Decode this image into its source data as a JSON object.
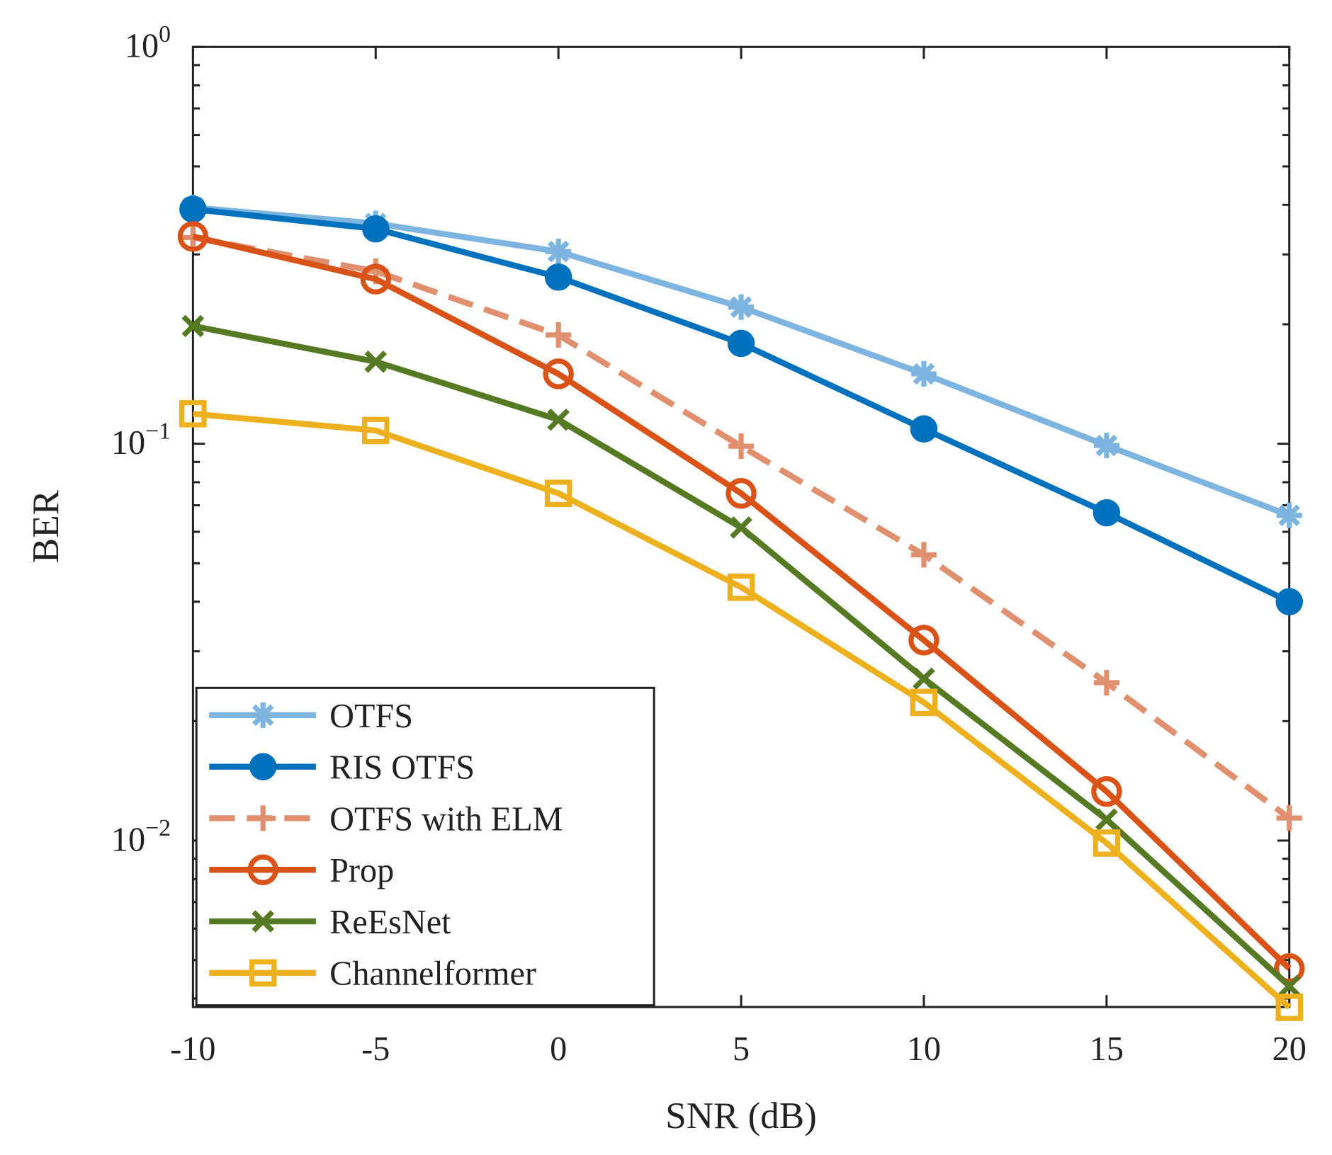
{
  "chart_data": {
    "type": "line",
    "title": "",
    "xlabel": "SNR (dB)",
    "ylabel": "BER",
    "xscale": "linear",
    "yscale": "log",
    "xlim": [
      -10,
      20
    ],
    "ylim": [
      0.0038,
      1
    ],
    "xticks": [
      -10,
      -5,
      0,
      5,
      10,
      15,
      20
    ],
    "xtick_labels": [
      "-10",
      "-5",
      "0",
      "5",
      "10",
      "15",
      "20"
    ],
    "yticks": [
      1,
      0.1,
      0.01
    ],
    "ytick_labels": [
      {
        "base": "10",
        "exp": "0"
      },
      {
        "base": "10",
        "exp": "−1"
      },
      {
        "base": "10",
        "exp": "−2"
      }
    ],
    "grid": false,
    "legend_position": "bottom-left",
    "x": [
      -10,
      -5,
      0,
      5,
      10,
      15,
      20
    ],
    "series": [
      {
        "name": "OTFS",
        "color": "#7DB5E0",
        "marker": "asterisk",
        "dash": "solid",
        "values": [
          0.394,
          0.359,
          0.305,
          0.221,
          0.15,
          0.099,
          0.066
        ]
      },
      {
        "name": "RIS OTFS",
        "color": "#0072BD",
        "marker": "filled-circle",
        "dash": "solid",
        "values": [
          0.39,
          0.348,
          0.263,
          0.179,
          0.109,
          0.067,
          0.04
        ]
      },
      {
        "name": "OTFS with ELM",
        "color": "#E0906E",
        "marker": "plus",
        "dash": "dashed",
        "values": [
          0.331,
          0.272,
          0.188,
          0.0986,
          0.0525,
          0.025,
          0.0114
        ]
      },
      {
        "name": "Prop",
        "color": "#D95319",
        "marker": "circle",
        "dash": "solid",
        "values": [
          0.333,
          0.26,
          0.15,
          0.075,
          0.032,
          0.0133,
          0.00476
        ]
      },
      {
        "name": "ReEsNet",
        "color": "#557A23",
        "marker": "x",
        "dash": "solid",
        "values": [
          0.198,
          0.161,
          0.115,
          0.0615,
          0.0256,
          0.0113,
          0.0043
        ]
      },
      {
        "name": "Channelformer",
        "color": "#EDB120",
        "marker": "square",
        "dash": "solid",
        "values": [
          0.119,
          0.108,
          0.075,
          0.0435,
          0.0223,
          0.00986,
          0.0038
        ]
      }
    ]
  }
}
